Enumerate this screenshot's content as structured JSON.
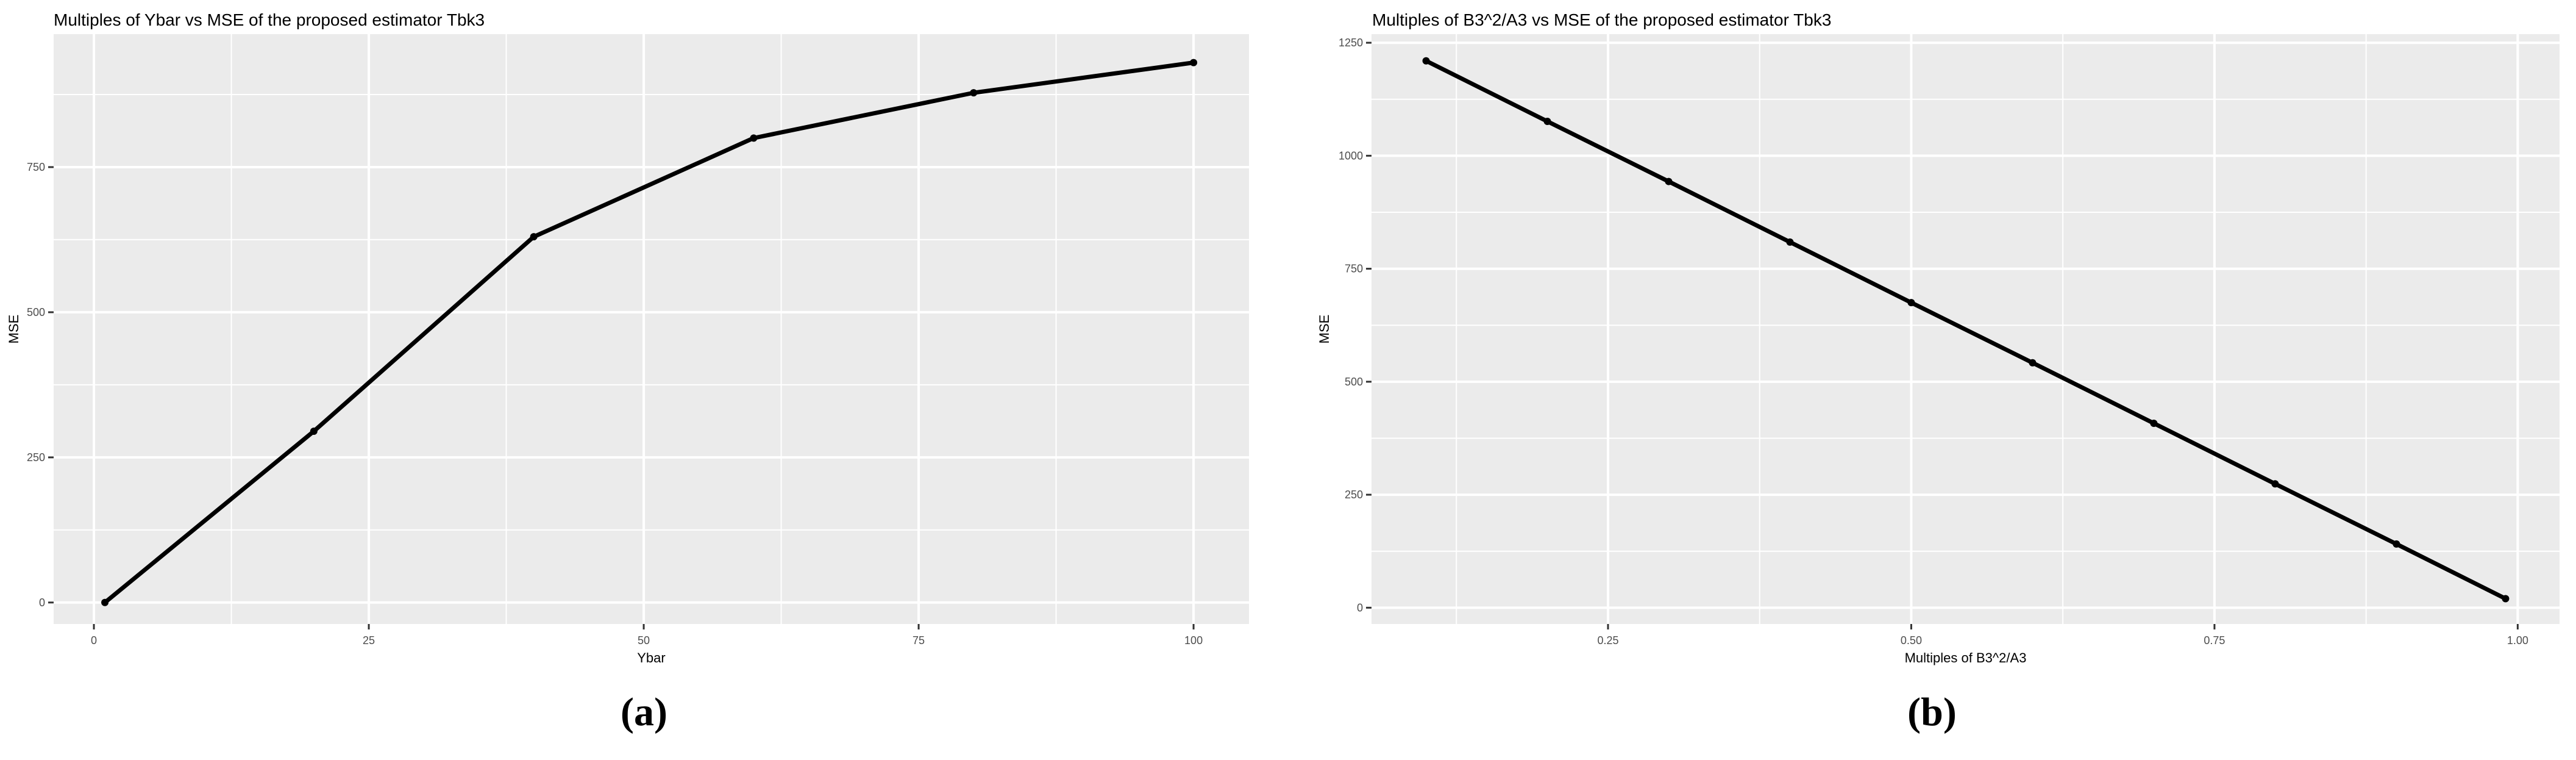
{
  "page": {
    "background": "#ffffff",
    "figure_type": "two-panel ggplot line charts"
  },
  "colors": {
    "panel_background": "#EBEBEB",
    "gridline": "#FFFFFF",
    "tick_label": "#4D4D4D",
    "tick_mark": "#333333",
    "title_text": "#000000",
    "series_line": "#000000"
  },
  "captions": {
    "a": "(a)",
    "b": "(b)"
  },
  "chart_data": [
    {
      "id": "a",
      "type": "line",
      "title": "Multiples of Ybar vs MSE of the proposed estimator Tbk3",
      "xlabel": "Ybar",
      "ylabel": "MSE",
      "caption": "(a)",
      "legend": "none",
      "grid": "on",
      "x": [
        1,
        20,
        40,
        60,
        80,
        100
      ],
      "y": [
        0,
        295,
        630,
        800,
        878,
        930
      ],
      "xlim": [
        -3.66,
        105.04
      ],
      "ylim": [
        -37,
        979
      ],
      "x_major_ticks": [
        0,
        25,
        50,
        75,
        100
      ],
      "x_tick_labels": [
        "0",
        "25",
        "50",
        "75",
        "100"
      ],
      "x_minor_ticks": [
        12.5,
        37.5,
        62.5,
        87.5
      ],
      "y_major_ticks": [
        0,
        250,
        500,
        750
      ],
      "y_tick_labels": [
        "0",
        "250",
        "500",
        "750"
      ],
      "y_minor_ticks": [
        125,
        375,
        625,
        875
      ]
    },
    {
      "id": "b",
      "type": "line",
      "title": "Multiples of B3^2/A3 vs MSE of the proposed estimator Tbk3",
      "xlabel": "Multiples of B3^2/A3",
      "ylabel": "MSE",
      "caption": "(b)",
      "legend": "none",
      "grid": "on",
      "x": [
        0.1,
        0.2,
        0.3,
        0.4,
        0.5,
        0.6,
        0.7,
        0.8,
        0.9,
        0.99
      ],
      "y": [
        1210,
        1076,
        943,
        809,
        675,
        542,
        408,
        274,
        141,
        20
      ],
      "xlim": [
        0.055,
        1.0345
      ],
      "ylim": [
        -36,
        1269
      ],
      "x_major_ticks": [
        0.25,
        0.5,
        0.75,
        1.0
      ],
      "x_tick_labels": [
        "0.25",
        "0.50",
        "0.75",
        "1.00"
      ],
      "x_minor_ticks": [
        0.125,
        0.375,
        0.625,
        0.875
      ],
      "y_major_ticks": [
        0,
        250,
        500,
        750,
        1000,
        1250
      ],
      "y_tick_labels": [
        "0",
        "250",
        "500",
        "750",
        "1000",
        "1250"
      ],
      "y_minor_ticks": [
        125,
        375,
        625,
        875,
        1125
      ]
    }
  ]
}
